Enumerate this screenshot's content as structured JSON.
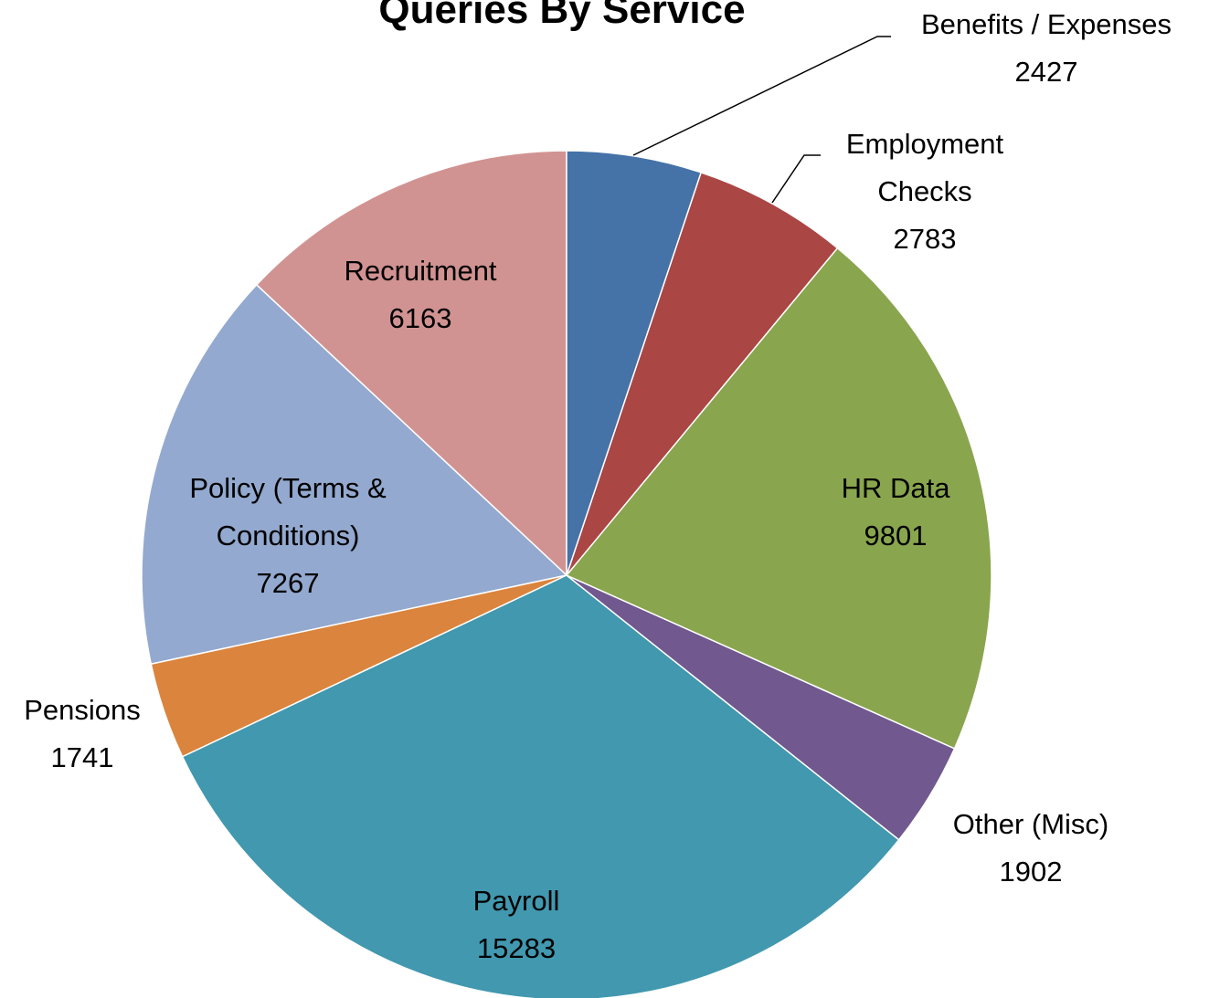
{
  "chart_data": {
    "type": "pie",
    "title": "Queries By Service",
    "categories": [
      "Benefits / Expenses",
      "Employment Checks",
      "HR Data",
      "Other (Misc)",
      "Payroll",
      "Pensions",
      "Policy (Terms & Conditions)",
      "Recruitment"
    ],
    "values": [
      2427,
      2783,
      9801,
      1902,
      15283,
      1741,
      7267,
      6163
    ],
    "colors": [
      "#4572a7",
      "#aa4643",
      "#89a54e",
      "#71588f",
      "#4198af",
      "#db843d",
      "#93a9cf",
      "#d19392"
    ]
  }
}
